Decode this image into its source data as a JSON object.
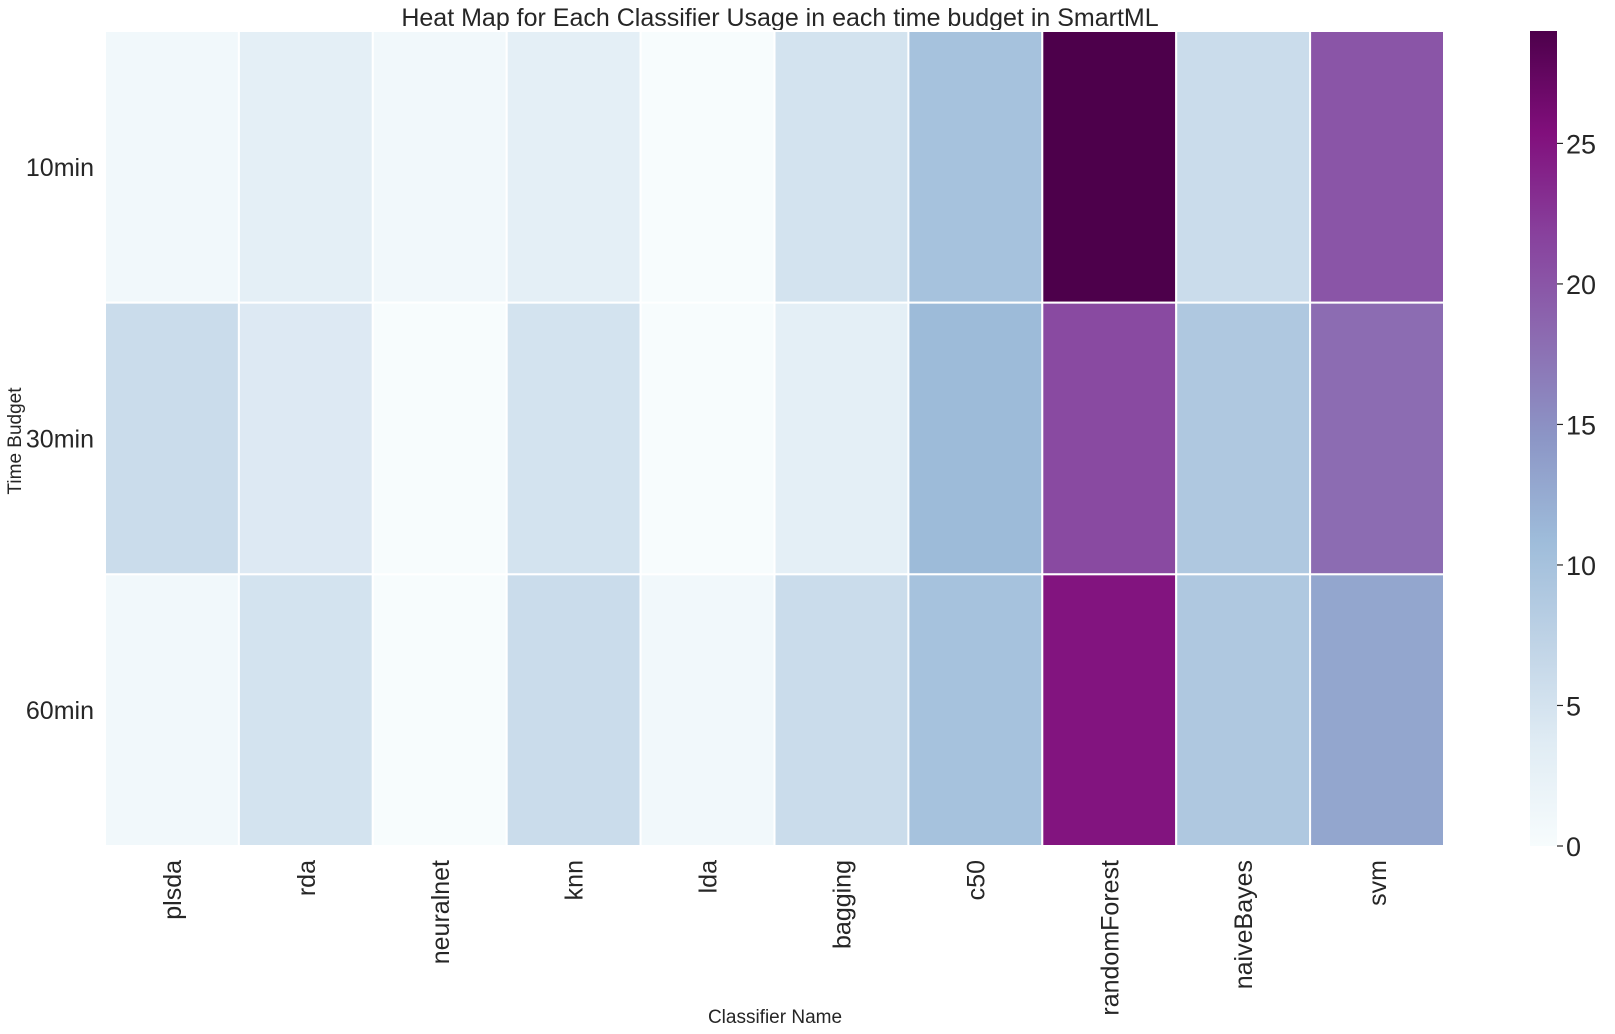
{
  "chart_data": {
    "type": "heatmap",
    "title": "Heat Map for Each Classifier Usage in each time budget in SmartML",
    "xlabel": "Classifier Name",
    "ylabel": "Time Budget",
    "x_categories": [
      "plsda",
      "rda",
      "neuralnet",
      "knn",
      "lda",
      "bagging",
      "c50",
      "randomForest",
      "naiveBayes",
      "svm"
    ],
    "y_categories": [
      "10min",
      "30min",
      "60min"
    ],
    "values": [
      [
        1,
        3,
        1,
        3,
        0,
        5,
        10,
        29,
        6,
        20
      ],
      [
        6,
        4,
        0,
        5,
        0,
        3,
        11,
        21,
        9,
        18
      ],
      [
        1,
        5,
        0,
        6,
        1,
        6,
        10,
        25,
        9,
        13
      ]
    ],
    "colorbar": {
      "min": 0,
      "max": 29,
      "ticks": [
        "0",
        "5",
        "10",
        "15",
        "20",
        "25"
      ],
      "colormap": "BuPu"
    }
  }
}
